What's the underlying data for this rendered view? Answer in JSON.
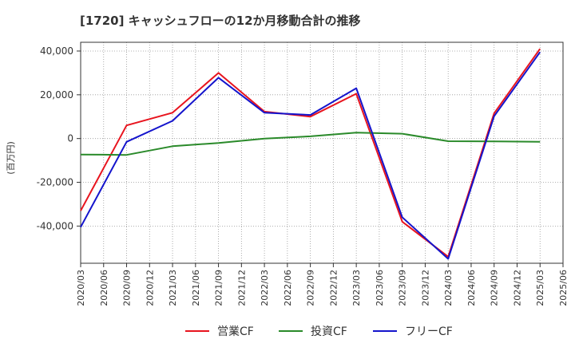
{
  "chart_data": {
    "type": "line",
    "title": "[1720]  キャッシュフローの12か月移動合計の推移",
    "ylabel": "(百万円)",
    "xlabel": "",
    "x": [
      "2020/03",
      "2020/06",
      "2020/09",
      "2020/12",
      "2021/03",
      "2021/06",
      "2021/09",
      "2021/12",
      "2022/03",
      "2022/06",
      "2022/09",
      "2022/12",
      "2023/03",
      "2023/06",
      "2023/09",
      "2023/12",
      "2024/03",
      "2024/06",
      "2024/09",
      "2024/12",
      "2025/03",
      "2025/06"
    ],
    "ylim": [
      -57000,
      44000
    ],
    "yticks": [
      40000,
      20000,
      0,
      -20000,
      -40000
    ],
    "ytick_labels": [
      "40,000",
      "20,000",
      "0",
      "-20,000",
      "-40,000"
    ],
    "grid": true,
    "legend_position": "bottom",
    "series": [
      {
        "name": "営業CF",
        "color": "#e8141e",
        "x": [
          "2020/03",
          "2020/09",
          "2021/03",
          "2021/09",
          "2022/03",
          "2022/09",
          "2023/03",
          "2023/09",
          "2024/03",
          "2024/09",
          "2025/03"
        ],
        "values": [
          -33000,
          6000,
          11800,
          30000,
          12300,
          10000,
          20500,
          -38000,
          -54000,
          11500,
          41000
        ]
      },
      {
        "name": "投資CF",
        "color": "#2a8a2a",
        "x": [
          "2020/03",
          "2020/09",
          "2021/03",
          "2021/09",
          "2022/03",
          "2022/09",
          "2023/03",
          "2023/09",
          "2024/03",
          "2024/09",
          "2025/03"
        ],
        "values": [
          -7300,
          -7500,
          -3500,
          -2000,
          0,
          1000,
          2700,
          2200,
          -1200,
          -1300,
          -1500
        ]
      },
      {
        "name": "フリーCF",
        "color": "#1414cc",
        "x": [
          "2020/03",
          "2020/09",
          "2021/03",
          "2021/09",
          "2022/03",
          "2022/09",
          "2023/03",
          "2023/09",
          "2024/03",
          "2024/09",
          "2025/03"
        ],
        "values": [
          -40500,
          -1500,
          8100,
          27800,
          11800,
          10800,
          23000,
          -36000,
          -55000,
          10200,
          39500
        ]
      }
    ]
  }
}
